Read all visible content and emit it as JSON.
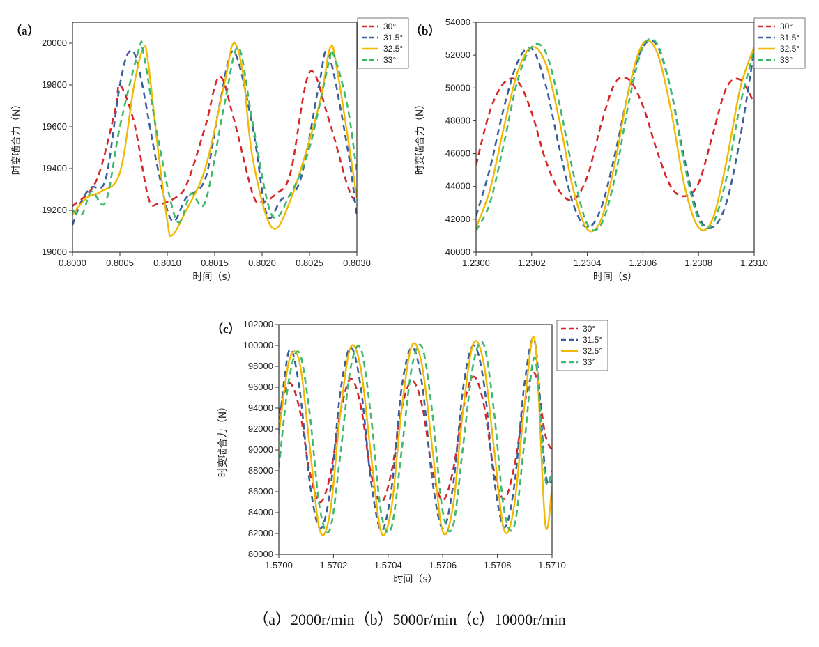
{
  "caption": "（a）2000r/min（b）5000r/min（c）10000r/min",
  "legend_names": [
    "30°",
    "31.5°",
    "32.5°",
    "33°"
  ],
  "colors": {
    "30°": "#d62728",
    "31.5°": "#3a5f9f",
    "32.5°": "#f2b800",
    "33°": "#3cb96a"
  },
  "chart_data": [
    {
      "panel_label": "（a）",
      "type": "line",
      "xlabel": "时间（s）",
      "ylabel": "时变啮合力（N）",
      "xlim": [
        0.8,
        0.803
      ],
      "ylim": [
        19000,
        20100
      ],
      "xticks": [
        "0.8000",
        "0.8005",
        "0.8010",
        "0.8015",
        "0.8020",
        "0.8025",
        "0.8030"
      ],
      "yticks": [
        "19000",
        "19200",
        "19400",
        "19600",
        "19800",
        "20000"
      ],
      "legend": "top-right",
      "series": [
        {
          "name": "30°",
          "x": [
            0.8,
            0.80025,
            0.80045,
            0.8005,
            0.80065,
            0.8008,
            0.8009,
            0.801,
            0.80105,
            0.8012,
            0.8014,
            0.80155,
            0.8017,
            0.8019,
            0.802,
            0.80215,
            0.8023,
            0.8025,
            0.8027,
            0.8029,
            0.803
          ],
          "y": [
            19220,
            19340,
            19680,
            19800,
            19620,
            19260,
            19230,
            19240,
            19250,
            19320,
            19600,
            19840,
            19640,
            19280,
            19240,
            19280,
            19380,
            19860,
            19640,
            19320,
            19230
          ]
        },
        {
          "name": "31.5°",
          "x": [
            0.8,
            0.8001,
            0.8002,
            0.80035,
            0.8005,
            0.8006,
            0.8007,
            0.8009,
            0.80105,
            0.8012,
            0.8014,
            0.80155,
            0.8017,
            0.8019,
            0.80205,
            0.8022,
            0.8024,
            0.8026,
            0.8027,
            0.8029,
            0.803
          ],
          "y": [
            19130,
            19250,
            19310,
            19350,
            19800,
            19960,
            19880,
            19400,
            19150,
            19260,
            19350,
            19700,
            19960,
            19600,
            19180,
            19250,
            19340,
            19800,
            19950,
            19500,
            19170
          ]
        },
        {
          "name": "32.5°",
          "x": [
            0.8,
            0.80015,
            0.8003,
            0.8005,
            0.80065,
            0.80075,
            0.8008,
            0.8009,
            0.801,
            0.80105,
            0.8012,
            0.8014,
            0.8016,
            0.8017,
            0.8018,
            0.8019,
            0.8021,
            0.8023,
            0.8026,
            0.80272,
            0.8028,
            0.803
          ],
          "y": [
            19180,
            19260,
            19290,
            19380,
            19800,
            19980,
            19900,
            19500,
            19150,
            19080,
            19200,
            19400,
            19800,
            20000,
            19850,
            19450,
            19120,
            19250,
            19700,
            19980,
            19850,
            19260
          ]
        },
        {
          "name": "33°",
          "x": [
            0.8,
            0.8001,
            0.8002,
            0.80035,
            0.8005,
            0.8007,
            0.80075,
            0.8009,
            0.8011,
            0.80125,
            0.8014,
            0.8016,
            0.80175,
            0.8019,
            0.8021,
            0.8023,
            0.8025,
            0.8027,
            0.80275,
            0.8029,
            0.803
          ],
          "y": [
            19200,
            19180,
            19290,
            19240,
            19600,
            19970,
            19950,
            19550,
            19150,
            19280,
            19240,
            19700,
            19980,
            19620,
            19180,
            19280,
            19500,
            19900,
            19950,
            19700,
            19380
          ]
        }
      ]
    },
    {
      "panel_label": "（b）",
      "type": "line",
      "xlabel": "时间（s）",
      "ylabel": "时变啮合力（N）",
      "xlim": [
        1.23,
        1.231
      ],
      "ylim": [
        40000,
        54000
      ],
      "xticks": [
        "1.2300",
        "1.2302",
        "1.2304",
        "1.2306",
        "1.2308",
        "1.2310"
      ],
      "yticks": [
        "40000",
        "42000",
        "44000",
        "46000",
        "48000",
        "50000",
        "52000",
        "54000"
      ],
      "legend": "top-right",
      "series": [
        {
          "name": "30°",
          "x": [
            1.23,
            1.23005,
            1.2301,
            1.23015,
            1.2302,
            1.23025,
            1.2303,
            1.23035,
            1.2304,
            1.23045,
            1.2305,
            1.23055,
            1.2306,
            1.23065,
            1.2307,
            1.23075,
            1.2308,
            1.23085,
            1.2309,
            1.23095,
            1.231
          ],
          "y": [
            45300,
            48600,
            50300,
            50400,
            48500,
            45600,
            43700,
            43200,
            44600,
            47800,
            50300,
            50500,
            48900,
            46200,
            44000,
            43400,
            44200,
            47100,
            50000,
            50500,
            49100
          ]
        },
        {
          "name": "31.5°",
          "x": [
            1.23,
            1.23005,
            1.2301,
            1.23015,
            1.2302,
            1.23025,
            1.2303,
            1.23035,
            1.2304,
            1.23045,
            1.2305,
            1.23055,
            1.2306,
            1.23065,
            1.2307,
            1.23075,
            1.2308,
            1.23085,
            1.2309,
            1.23095,
            1.231
          ],
          "y": [
            42200,
            45100,
            48800,
            51600,
            52400,
            50200,
            46300,
            42900,
            41500,
            42700,
            46000,
            49900,
            52500,
            52600,
            49900,
            45600,
            42200,
            41500,
            43000,
            47000,
            52300
          ]
        },
        {
          "name": "32.5°",
          "x": [
            1.23,
            1.23005,
            1.2301,
            1.23015,
            1.2302,
            1.23025,
            1.2303,
            1.23035,
            1.2304,
            1.23045,
            1.2305,
            1.23055,
            1.2306,
            1.23065,
            1.2307,
            1.23075,
            1.2308,
            1.23085,
            1.2309,
            1.23095,
            1.231
          ],
          "y": [
            41500,
            43800,
            47600,
            51000,
            52500,
            51500,
            48000,
            43800,
            41400,
            42000,
            45500,
            50000,
            52700,
            52200,
            48700,
            44000,
            41500,
            42000,
            45500,
            50000,
            52500
          ]
        },
        {
          "name": "33°",
          "x": [
            1.23,
            1.23005,
            1.2301,
            1.23015,
            1.2302,
            1.23025,
            1.2303,
            1.23035,
            1.2304,
            1.23045,
            1.2305,
            1.23055,
            1.2306,
            1.23065,
            1.2307,
            1.23075,
            1.2308,
            1.23085,
            1.2309,
            1.23095,
            1.231
          ],
          "y": [
            41300,
            43000,
            46600,
            50500,
            52500,
            52200,
            49000,
            44800,
            41700,
            41700,
            44600,
            49200,
            52500,
            52700,
            49900,
            45300,
            42000,
            41700,
            44500,
            49000,
            52300
          ]
        }
      ]
    },
    {
      "panel_label": "（c）",
      "type": "line",
      "xlabel": "时间（s）",
      "ylabel": "时变啮合力（N）",
      "xlim": [
        1.57,
        1.571
      ],
      "ylim": [
        80000,
        102000
      ],
      "xticks": [
        "1.5700",
        "1.5702",
        "1.5704",
        "1.5706",
        "1.5708",
        "1.5710"
      ],
      "yticks": [
        "80000",
        "82000",
        "84000",
        "86000",
        "88000",
        "90000",
        "92000",
        "94000",
        "96000",
        "98000",
        "100000",
        "102000"
      ],
      "legend": "top-right",
      "series": [
        {
          "name": "30°",
          "x": [
            1.57,
            1.5700375,
            1.570075,
            1.5701125,
            1.57015,
            1.5701875,
            1.570225,
            1.5702625,
            1.5703,
            1.5703375,
            1.570375,
            1.5704125,
            1.57045,
            1.5704875,
            1.570525,
            1.5705625,
            1.5706,
            1.5706375,
            1.570675,
            1.5707125,
            1.57075,
            1.5707875,
            1.570825,
            1.5708625,
            1.5709,
            1.5709375,
            1.570975,
            1.571
          ],
          "y": [
            93500,
            96400,
            94000,
            88000,
            85000,
            87500,
            93500,
            96800,
            94200,
            87700,
            85000,
            87900,
            94000,
            96600,
            94200,
            88000,
            85200,
            88000,
            94000,
            97000,
            94400,
            88000,
            85300,
            88500,
            94500,
            97300,
            91500,
            90000
          ]
        },
        {
          "name": "31.5°",
          "x": [
            1.57,
            1.5700375,
            1.570075,
            1.5701125,
            1.57015,
            1.5701875,
            1.570225,
            1.5702625,
            1.5703,
            1.5703375,
            1.570375,
            1.5704125,
            1.57045,
            1.5704875,
            1.570525,
            1.5705625,
            1.5706,
            1.5706375,
            1.570675,
            1.5707125,
            1.57075,
            1.5707875,
            1.570825,
            1.5708625,
            1.5709,
            1.5709375,
            1.570975,
            1.571
          ],
          "y": [
            92000,
            99500,
            96000,
            87000,
            82500,
            86000,
            95500,
            99800,
            96000,
            87000,
            82300,
            86300,
            96000,
            99800,
            96200,
            87000,
            82500,
            86500,
            96000,
            100000,
            96500,
            87300,
            82600,
            86700,
            96500,
            100300,
            88000,
            87000
          ]
        },
        {
          "name": "32.5°",
          "x": [
            1.57,
            1.5700375,
            1.570075,
            1.5701125,
            1.57015,
            1.5701875,
            1.570225,
            1.5702625,
            1.5703,
            1.5703375,
            1.570375,
            1.5704125,
            1.57045,
            1.5704875,
            1.570525,
            1.5705625,
            1.5706,
            1.5706375,
            1.570675,
            1.5707125,
            1.57075,
            1.5707875,
            1.570825,
            1.5708625,
            1.5709,
            1.5709375,
            1.570975,
            1.571
          ],
          "y": [
            91500,
            98500,
            98500,
            90500,
            82300,
            84000,
            93500,
            99800,
            97800,
            89500,
            82100,
            84500,
            94000,
            100000,
            98000,
            90000,
            82200,
            84600,
            94000,
            100200,
            98300,
            90200,
            82300,
            84800,
            94500,
            100400,
            83000,
            86500
          ]
        },
        {
          "name": "33°",
          "x": [
            1.57,
            1.5700375,
            1.570075,
            1.5701125,
            1.57015,
            1.5701875,
            1.570225,
            1.5702625,
            1.5703,
            1.5703375,
            1.570375,
            1.5704125,
            1.57045,
            1.5704875,
            1.570525,
            1.5705625,
            1.5706,
            1.5706375,
            1.570675,
            1.5707125,
            1.57075,
            1.5707875,
            1.570825,
            1.5708625,
            1.5709,
            1.5709375,
            1.570975,
            1.571
          ],
          "y": [
            88300,
            96800,
            99300,
            93600,
            84400,
            82400,
            89500,
            97800,
            99700,
            93200,
            83900,
            82600,
            90000,
            98000,
            99800,
            93400,
            84100,
            82700,
            90500,
            98300,
            100100,
            93700,
            84200,
            82800,
            91000,
            98800,
            87300,
            88000
          ]
        }
      ]
    }
  ]
}
